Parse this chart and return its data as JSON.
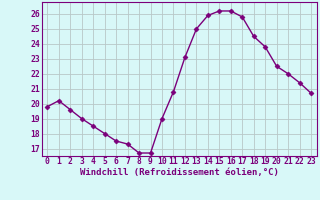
{
  "x": [
    0,
    1,
    2,
    3,
    4,
    5,
    6,
    7,
    8,
    9,
    10,
    11,
    12,
    13,
    14,
    15,
    16,
    17,
    18,
    19,
    20,
    21,
    22,
    23
  ],
  "y": [
    19.8,
    20.2,
    19.6,
    19.0,
    18.5,
    18.0,
    17.5,
    17.3,
    16.7,
    16.7,
    19.0,
    20.8,
    23.1,
    25.0,
    25.9,
    26.2,
    26.2,
    25.8,
    24.5,
    23.8,
    22.5,
    22.0,
    21.4,
    20.7
  ],
  "line_color": "#7B007B",
  "marker": "D",
  "markersize": 2.5,
  "linewidth": 1.0,
  "xlabel": "Windchill (Refroidissement éolien,°C)",
  "ylim": [
    16.5,
    26.8
  ],
  "yticks": [
    17,
    18,
    19,
    20,
    21,
    22,
    23,
    24,
    25,
    26
  ],
  "xlim": [
    -0.5,
    23.5
  ],
  "bg_color": "#d8f8f8",
  "grid_color": "#b8c8c8",
  "xlabel_fontsize": 6.5,
  "tick_fontsize": 5.8
}
